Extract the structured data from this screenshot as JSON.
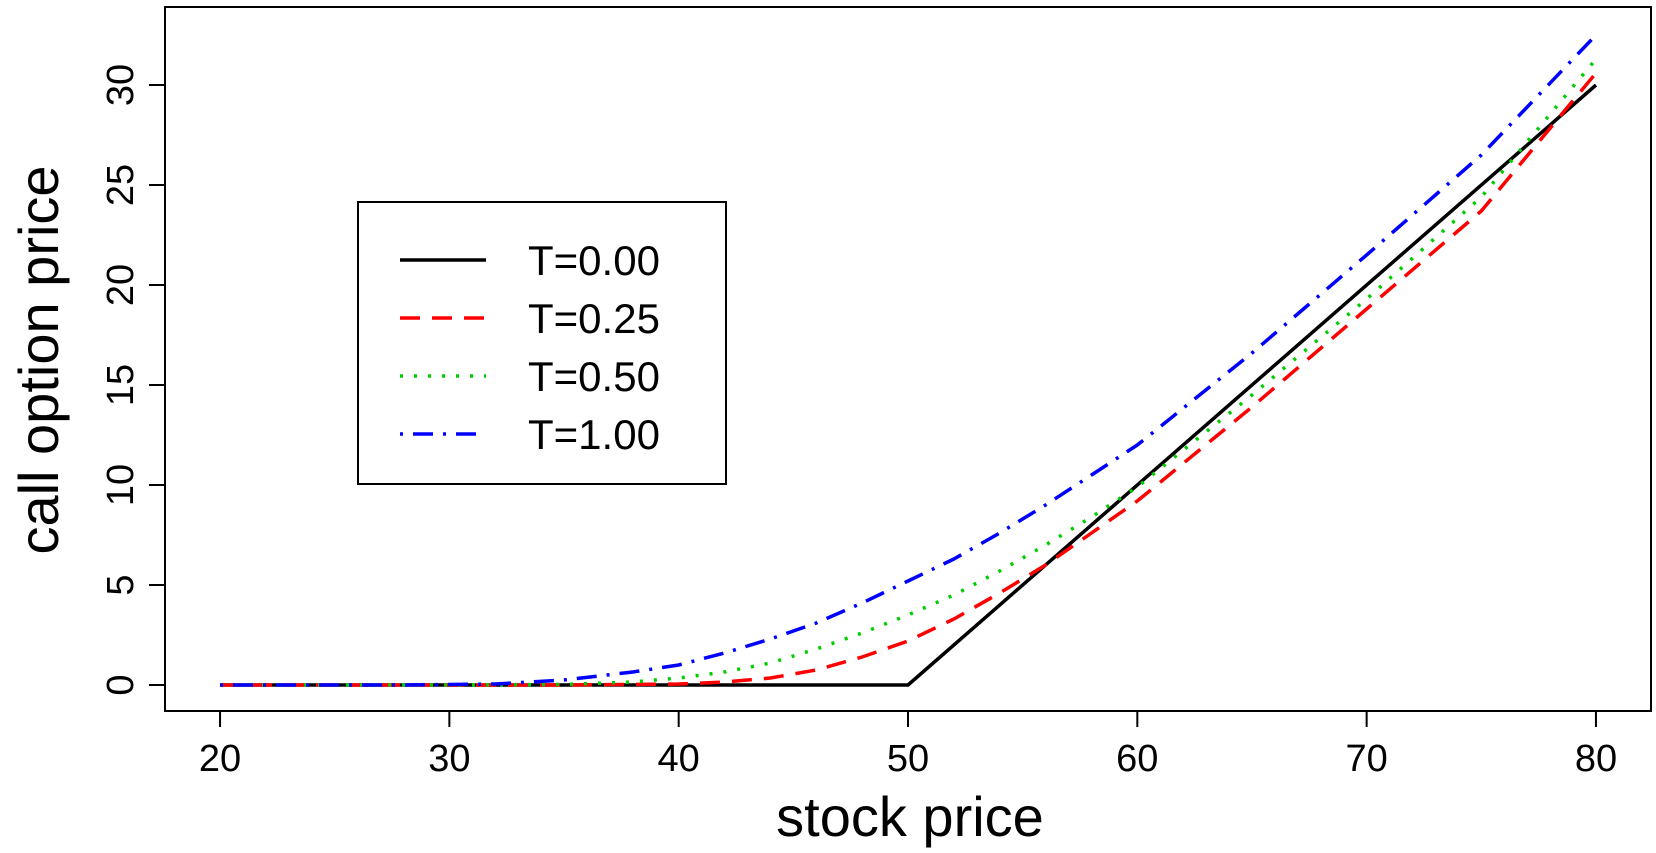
{
  "chart_data": {
    "type": "line",
    "title": "",
    "xlabel": "stock price",
    "ylabel": "call option price",
    "xlim": [
      17.6,
      82.4
    ],
    "ylim": [
      -1.3,
      33.9
    ],
    "xticks": [
      20,
      30,
      40,
      50,
      60,
      70,
      80
    ],
    "yticks": [
      0,
      5,
      10,
      15,
      20,
      25,
      30
    ],
    "grid": false,
    "legend_position": "center-left",
    "series": [
      {
        "name": "T=0.00",
        "color": "#000000",
        "dash": "solid",
        "x": [
          20,
          50,
          80
        ],
        "y": [
          0,
          0,
          30
        ]
      },
      {
        "name": "T=0.25",
        "color": "#ff0000",
        "dash": "dashed",
        "x": [
          20,
          30,
          35,
          40,
          42,
          44,
          46,
          48,
          50,
          52,
          54,
          56,
          58,
          60,
          65,
          70,
          75,
          80
        ],
        "y": [
          0,
          0,
          0,
          0.05,
          0.15,
          0.35,
          0.75,
          1.4,
          2.2,
          3.3,
          4.6,
          6.0,
          7.6,
          9.2,
          13.9,
          18.8,
          23.7,
          30.6
        ]
      },
      {
        "name": "T=0.50",
        "color": "#00cd00",
        "dash": "dotted",
        "x": [
          20,
          30,
          35,
          38,
          40,
          42,
          44,
          46,
          48,
          50,
          52,
          54,
          56,
          58,
          60,
          65,
          70,
          75,
          80
        ],
        "y": [
          0,
          0,
          0.03,
          0.15,
          0.35,
          0.65,
          1.1,
          1.8,
          2.6,
          3.5,
          4.5,
          5.7,
          7.0,
          8.4,
          9.9,
          14.5,
          19.3,
          24.4,
          31.3
        ]
      },
      {
        "name": "T=1.00",
        "color": "#0000ff",
        "dash": "dotdash",
        "x": [
          20,
          28,
          32,
          35,
          38,
          40,
          42,
          44,
          46,
          48,
          50,
          52,
          54,
          56,
          58,
          60,
          65,
          70,
          75,
          80
        ],
        "y": [
          0,
          0,
          0.05,
          0.25,
          0.65,
          1.0,
          1.6,
          2.3,
          3.1,
          4.1,
          5.2,
          6.3,
          7.6,
          9.0,
          10.5,
          12.0,
          16.6,
          21.5,
          26.5,
          32.5
        ]
      }
    ]
  }
}
